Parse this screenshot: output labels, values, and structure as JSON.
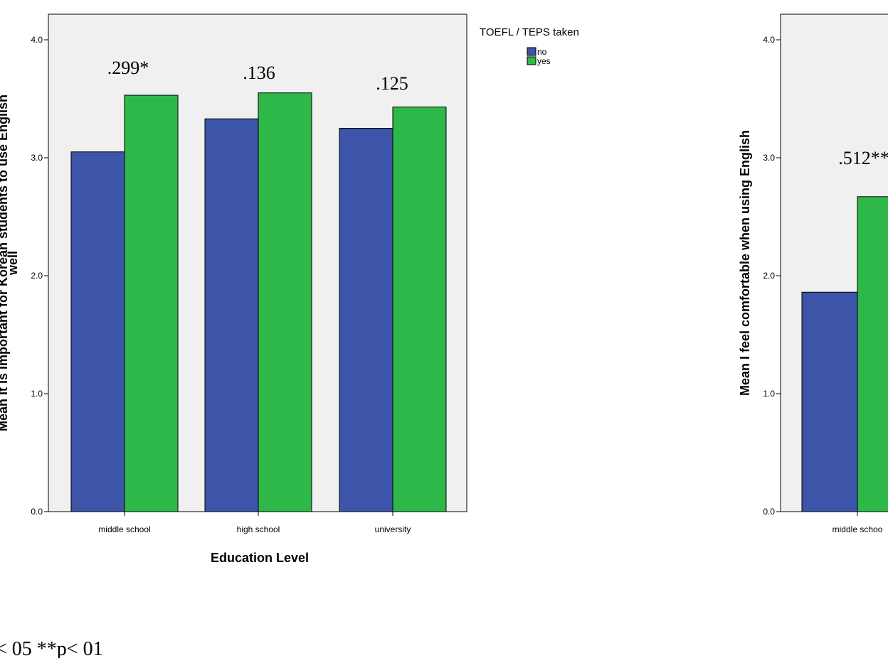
{
  "colors": {
    "no": "#3d55a8",
    "yes": "#2fb84a",
    "plot_bg": "#f0f0f0"
  },
  "footnote": "< 05  **p< 01",
  "chart_data": [
    {
      "type": "bar",
      "title": "",
      "xlabel": "Education Level",
      "ylabel_line1": "Mean It is important for Korean students to use English",
      "ylabel_line2": "well",
      "ylim": [
        0,
        4
      ],
      "yticks": [
        "0.0",
        "1.0",
        "2.0",
        "3.0",
        "4.0"
      ],
      "grid": false,
      "categories": [
        "middle school",
        "high school",
        "university"
      ],
      "series": [
        {
          "name": "no",
          "values": [
            3.05,
            3.33,
            3.25
          ]
        },
        {
          "name": "yes",
          "values": [
            3.53,
            3.55,
            3.43
          ]
        }
      ],
      "annotations": [
        ".299*",
        ".136",
        ".125"
      ],
      "legend": {
        "title": "TOEFL / TEPS taken",
        "entries": [
          "no",
          "yes"
        ],
        "placement": "right"
      }
    },
    {
      "type": "bar",
      "title": "",
      "xlabel": "",
      "ylabel_line1": "Mean I feel comfortable when using English",
      "ylabel_line2": "",
      "ylim": [
        0,
        4
      ],
      "yticks": [
        "0.0",
        "1.0",
        "2.0",
        "3.0",
        "4.0"
      ],
      "grid": false,
      "categories": [
        "middle schoo"
      ],
      "series": [
        {
          "name": "no",
          "values": [
            1.86
          ]
        },
        {
          "name": "yes",
          "values": [
            2.67
          ]
        }
      ],
      "annotations": [
        ".512**"
      ]
    }
  ]
}
